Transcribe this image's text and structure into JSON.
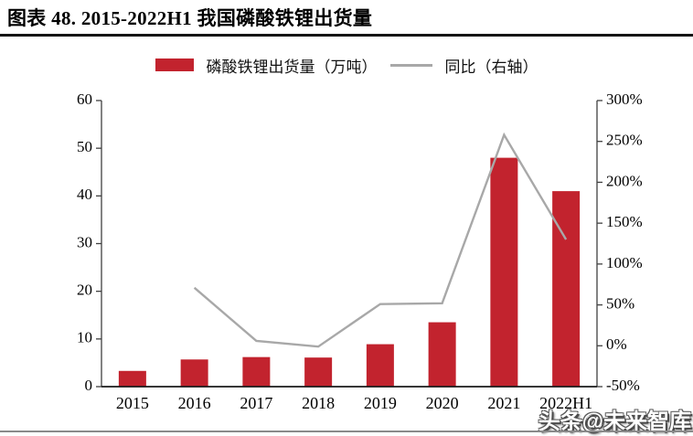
{
  "header": {
    "title": "图表 48. 2015-2022H1 我国磷酸铁锂出货量"
  },
  "watermark": {
    "text": "头条@未来智库"
  },
  "chart_data": {
    "type": "bar",
    "subtype": "combo-bar-line",
    "title": "图表 48. 2015-2022H1 我国磷酸铁锂出货量",
    "categories": [
      "2015",
      "2016",
      "2017",
      "2018",
      "2019",
      "2020",
      "2021",
      "2022H1"
    ],
    "series": [
      {
        "name": "磷酸铁锂出货量（万吨）",
        "type": "bar",
        "axis": "left",
        "values": [
          3.3,
          5.7,
          6.2,
          6.1,
          8.9,
          13.5,
          48,
          41
        ]
      },
      {
        "name": "同比（右轴）",
        "type": "line",
        "axis": "right",
        "unit": "%",
        "values": [
          null,
          71,
          6,
          -1,
          51,
          52,
          258,
          130
        ]
      }
    ],
    "left_axis": {
      "min": 0,
      "max": 60,
      "step": 10,
      "ticks": [
        "0",
        "10",
        "20",
        "30",
        "40",
        "50",
        "60"
      ]
    },
    "right_axis": {
      "min": -50,
      "max": 300,
      "step": 50,
      "ticks": [
        "-50%",
        "0%",
        "50%",
        "100%",
        "150%",
        "200%",
        "250%",
        "300%"
      ]
    },
    "colors": {
      "bar": "#C2232E",
      "line": "#A8A8A8",
      "axis": "#404040",
      "baseline": "#1a1a1a",
      "text": "#000000"
    },
    "legend_position": "top",
    "grid": false
  }
}
